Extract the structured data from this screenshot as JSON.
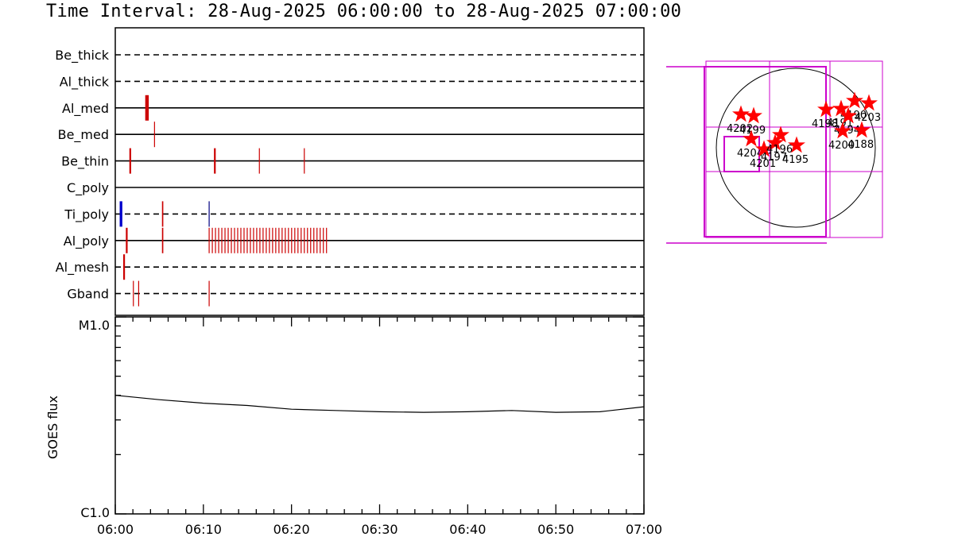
{
  "title": "Time Interval: 28-Aug-2025 06:00:00 to 28-Aug-2025 07:00:00",
  "chart_data": [
    {
      "type": "event-timeline",
      "x_range": [
        "06:00",
        "07:00"
      ],
      "rows": [
        {
          "name": "Be_thick",
          "style": "dashed",
          "events": []
        },
        {
          "name": "Al_thick",
          "style": "dashed",
          "events": []
        },
        {
          "name": "Al_med",
          "style": "solid",
          "events": [
            {
              "t": 3.4,
              "dur": 0.4,
              "color": "#cc0000"
            }
          ]
        },
        {
          "name": "Be_med",
          "style": "solid",
          "events": [
            {
              "t": 4.4,
              "dur": 0.1,
              "color": "#cc0000"
            }
          ]
        },
        {
          "name": "Be_thin",
          "style": "solid",
          "events": [
            {
              "t": 1.6,
              "dur": 0.2,
              "color": "#cc0000"
            },
            {
              "t": 11.2,
              "dur": 0.2,
              "color": "#cc0000"
            },
            {
              "t": 16.3,
              "dur": 0.1,
              "color": "#cc0000"
            },
            {
              "t": 21.4,
              "dur": 0.1,
              "color": "#cc0000"
            }
          ]
        },
        {
          "name": "C_poly",
          "style": "solid",
          "events": []
        },
        {
          "name": "Ti_poly",
          "style": "dashed",
          "events": [
            {
              "t": 0.5,
              "dur": 0.3,
              "color": "#0000cc"
            },
            {
              "t": 5.3,
              "dur": 0.15,
              "color": "#cc0000"
            },
            {
              "t": 10.6,
              "dur": 0.1,
              "color": "#000080"
            }
          ]
        },
        {
          "name": "Al_poly",
          "style": "solid",
          "events": [
            {
              "t": 1.2,
              "dur": 0.2,
              "color": "#cc0000"
            },
            {
              "t": 5.3,
              "dur": 0.15,
              "color": "#cc0000"
            },
            {
              "t": 10.6,
              "dur": 0.1,
              "color": "#cc0000",
              "repeat": 38,
              "step": 0.36
            }
          ]
        },
        {
          "name": "Al_mesh",
          "style": "dashed",
          "events": [
            {
              "t": 0.9,
              "dur": 0.2,
              "color": "#cc0000"
            }
          ]
        },
        {
          "name": "Gband",
          "style": "dashed",
          "events": [
            {
              "t": 2.0,
              "dur": 0.1,
              "color": "#cc0000"
            },
            {
              "t": 2.6,
              "dur": 0.1,
              "color": "#cc0000"
            },
            {
              "t": 10.6,
              "dur": 0.1,
              "color": "#cc0000"
            }
          ]
        }
      ]
    },
    {
      "type": "line",
      "ylabel": "GOES flux",
      "y_scale": "log",
      "y_ticks": [
        "M1.0",
        "C1.0"
      ],
      "ylim": [
        1e-06,
        1e-05
      ],
      "x_ticks": [
        "06:00",
        "06:10",
        "06:20",
        "06:30",
        "06:40",
        "06:50",
        "07:00"
      ],
      "x": [
        "06:00",
        "06:05",
        "06:10",
        "06:15",
        "06:20",
        "06:25",
        "06:30",
        "06:35",
        "06:40",
        "06:45",
        "06:50",
        "06:55",
        "07:00"
      ],
      "y": [
        4e-06,
        3.8e-06,
        3.65e-06,
        3.55e-06,
        3.4e-06,
        3.35e-06,
        3.3e-06,
        3.28e-06,
        3.3e-06,
        3.35e-06,
        3.28e-06,
        3.3e-06,
        3.5e-06
      ]
    },
    {
      "type": "solar-disk-map",
      "regions": [
        {
          "label": "4190",
          "x": 0.74,
          "y": 0.59
        },
        {
          "label": "4203",
          "x": 0.92,
          "y": 0.56
        },
        {
          "label": "4198",
          "x": 0.38,
          "y": 0.48
        },
        {
          "label": "4191",
          "x": 0.57,
          "y": 0.49
        },
        {
          "label": "4194",
          "x": 0.66,
          "y": 0.4
        },
        {
          "label": "4188",
          "x": 0.83,
          "y": 0.22
        },
        {
          "label": "4200",
          "x": 0.59,
          "y": 0.21
        },
        {
          "label": "4199",
          "x": -0.53,
          "y": 0.4
        },
        {
          "label": "4202",
          "x": -0.69,
          "y": 0.42
        },
        {
          "label": "4204",
          "x": -0.56,
          "y": 0.11
        },
        {
          "label": "4201",
          "x": -0.4,
          "y": -0.02
        },
        {
          "label": "4197",
          "x": -0.26,
          "y": 0.06
        },
        {
          "label": "4196",
          "x": -0.19,
          "y": 0.16
        },
        {
          "label": "4195",
          "x": 0.01,
          "y": 0.03
        }
      ]
    }
  ]
}
